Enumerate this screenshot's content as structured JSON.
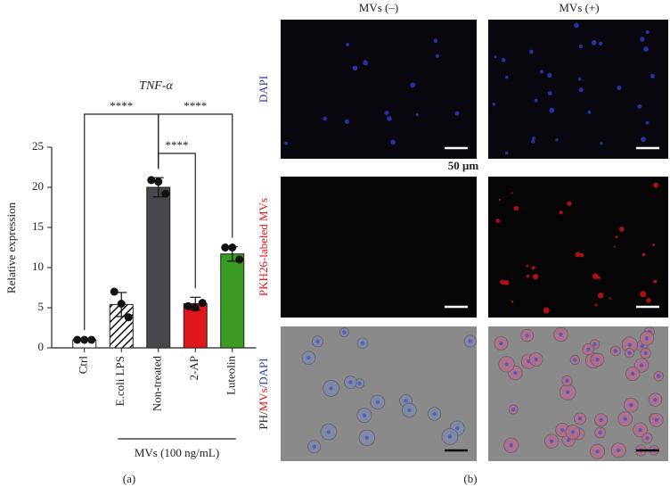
{
  "chart_data": {
    "type": "bar",
    "title": "TNF-α",
    "ylabel": "Relative expression",
    "categories": [
      "Ctrl",
      "E.coli LPS",
      "Non-treated",
      "2-AP",
      "Luteolin"
    ],
    "values": [
      1,
      5.4,
      20,
      5.5,
      11.7
    ],
    "errors": [
      0.1,
      1.5,
      1.2,
      0.8,
      0.9
    ],
    "points": [
      [
        1,
        1,
        1
      ],
      [
        7,
        5.5,
        3.8
      ],
      [
        20.9,
        20.7,
        19.2
      ],
      [
        5.2,
        5.0,
        5.6
      ],
      [
        12.5,
        12.5,
        11
      ]
    ],
    "colors": [
      "#ffffff",
      "#ffffff",
      "#48484c",
      "#e0161b",
      "#3b9a22"
    ],
    "hatch": [
      false,
      true,
      false,
      false,
      false
    ],
    "ylim": [
      0,
      25
    ],
    "yticks": [
      0,
      5,
      10,
      15,
      20,
      25
    ],
    "comparisons": [
      {
        "from": 0,
        "to": 2,
        "label": "****"
      },
      {
        "from": 2,
        "to": 4,
        "label": "****"
      },
      {
        "from": 2,
        "to": 3,
        "label": "****"
      }
    ],
    "group": {
      "label": "MVs (100 ng/mL)",
      "from": 1,
      "to": 4
    },
    "caption": "(a)"
  },
  "figure": {
    "column_headers": [
      "MVs (–)",
      "MVs (+)"
    ],
    "row_labels": [
      [
        {
          "text": "DAPI",
          "color": "#2a3fa0"
        }
      ],
      [
        {
          "text": "PKH26-labeled MVs",
          "color": "#e0161b"
        }
      ],
      [
        {
          "text": "PH/",
          "color": "#222222"
        },
        {
          "text": "MVs",
          "color": "#e0161b"
        },
        {
          "text": "/DAPI",
          "color": "#2a3fa0"
        }
      ]
    ],
    "scale_label": "50 μm",
    "caption": "(b)"
  }
}
